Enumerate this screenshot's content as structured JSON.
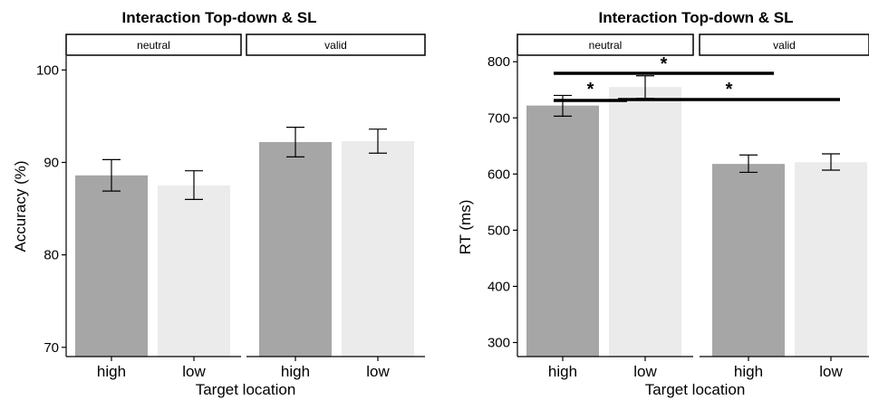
{
  "chart_data": [
    {
      "type": "bar",
      "title": "Interaction Top-down & SL",
      "xlabel": "Target location",
      "ylabel": "Accuracy (%)",
      "ylim": [
        69,
        101.5
      ],
      "yticks": [
        70,
        80,
        90,
        100
      ],
      "facets": [
        "neutral",
        "valid"
      ],
      "categories": [
        "high",
        "low"
      ],
      "bar_colors": [
        "#a6a6a6",
        "#ebebeb"
      ],
      "bars": [
        {
          "facet": "neutral",
          "category": "high",
          "value": 88.6,
          "err_low": 86.9,
          "err_high": 90.3
        },
        {
          "facet": "neutral",
          "category": "low",
          "value": 87.5,
          "err_low": 86.0,
          "err_high": 89.1
        },
        {
          "facet": "valid",
          "category": "high",
          "value": 92.2,
          "err_low": 90.6,
          "err_high": 93.8
        },
        {
          "facet": "valid",
          "category": "low",
          "value": 92.3,
          "err_low": 91.0,
          "err_high": 93.6
        }
      ],
      "significance": []
    },
    {
      "type": "bar",
      "title": "Interaction Top-down & SL",
      "xlabel": "Target location",
      "ylabel": "RT (ms)",
      "ylim": [
        275,
        810
      ],
      "yticks": [
        300,
        400,
        500,
        600,
        700,
        800
      ],
      "facets": [
        "neutral",
        "valid"
      ],
      "categories": [
        "high",
        "low"
      ],
      "bar_colors": [
        "#a6a6a6",
        "#ebebeb"
      ],
      "bars": [
        {
          "facet": "neutral",
          "category": "high",
          "value": 722,
          "err_low": 703,
          "err_high": 740
        },
        {
          "facet": "neutral",
          "category": "low",
          "value": 755,
          "err_low": 735,
          "err_high": 775
        },
        {
          "facet": "valid",
          "category": "high",
          "value": 618,
          "err_low": 603,
          "err_high": 634
        },
        {
          "facet": "valid",
          "category": "low",
          "value": 621,
          "err_low": 607,
          "err_high": 636
        }
      ],
      "significance": [
        {
          "from": "neutral-high",
          "to": "neutral-low",
          "label": "*"
        },
        {
          "from": "neutral-high",
          "to": "valid-high",
          "label": "*"
        },
        {
          "from": "neutral-low",
          "to": "valid-low",
          "label": "*"
        }
      ]
    }
  ]
}
